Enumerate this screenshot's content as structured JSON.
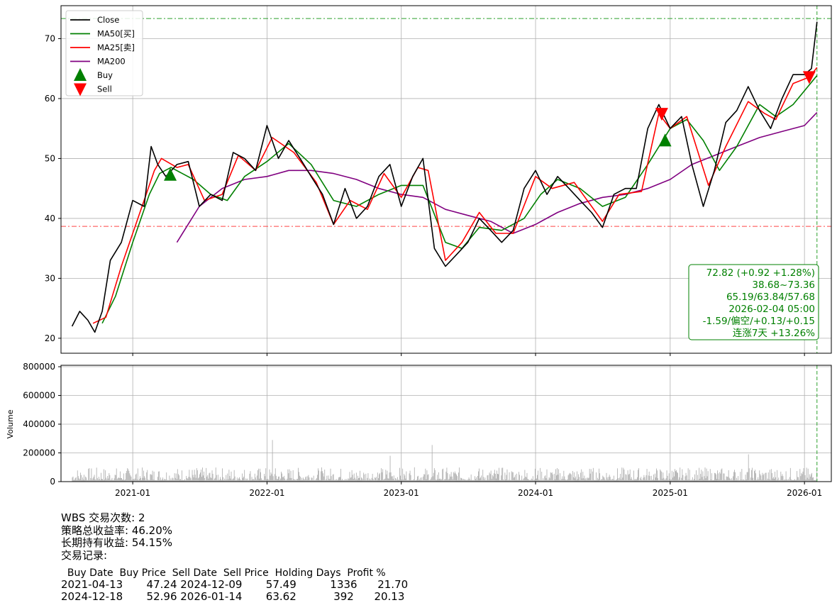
{
  "chart_data": [
    {
      "type": "line",
      "title": "",
      "xlabel": "",
      "ylabel": "",
      "x_tick_labels": [
        "2021-01",
        "2022-01",
        "2023-01",
        "2024-01",
        "2025-01",
        "2026-01"
      ],
      "y_ticks": [
        20,
        30,
        40,
        50,
        60,
        70
      ],
      "ylim": [
        17.5,
        75.5
      ],
      "grid": true,
      "legend_position": "top-left",
      "legend": [
        "Close",
        "MA50[买]",
        "MA25[卖]",
        "MA200",
        "Buy",
        "Sell"
      ],
      "colors": {
        "Close": "#000000",
        "MA50[买]": "#008000",
        "MA25[卖]": "#ff0000",
        "MA200": "#800080",
        "Buy": "#008000",
        "Sell": "#ff0000"
      },
      "hlines": [
        {
          "value": 73.36,
          "color": "#2ca02c",
          "style": "dash-dot"
        },
        {
          "value": 38.68,
          "color": "#ff4444",
          "style": "dash-dot"
        }
      ],
      "vline": {
        "date": "2026-02-04",
        "color": "#2ca02c"
      },
      "series": [
        {
          "name": "Close",
          "points": [
            [
              "2020-07-20",
              22.0
            ],
            [
              "2020-08-10",
              24.5
            ],
            [
              "2020-09-01",
              23.0
            ],
            [
              "2020-09-20",
              21.0
            ],
            [
              "2020-10-10",
              24.5
            ],
            [
              "2020-11-01",
              33.0
            ],
            [
              "2020-12-01",
              36.0
            ],
            [
              "2021-01-01",
              43.0
            ],
            [
              "2021-02-01",
              42.0
            ],
            [
              "2021-02-20",
              52.0
            ],
            [
              "2021-03-10",
              49.0
            ],
            [
              "2021-04-01",
              47.0
            ],
            [
              "2021-05-01",
              49.0
            ],
            [
              "2021-06-01",
              49.5
            ],
            [
              "2021-07-01",
              42.0
            ],
            [
              "2021-08-01",
              44.0
            ],
            [
              "2021-09-01",
              43.0
            ],
            [
              "2021-10-01",
              51.0
            ],
            [
              "2021-11-01",
              50.0
            ],
            [
              "2021-12-01",
              48.0
            ],
            [
              "2022-01-01",
              55.5
            ],
            [
              "2022-02-01",
              50.0
            ],
            [
              "2022-03-01",
              53.0
            ],
            [
              "2022-04-01",
              50.0
            ],
            [
              "2022-05-01",
              47.0
            ],
            [
              "2022-06-01",
              44.0
            ],
            [
              "2022-07-01",
              39.0
            ],
            [
              "2022-08-01",
              45.0
            ],
            [
              "2022-09-01",
              40.0
            ],
            [
              "2022-10-01",
              42.0
            ],
            [
              "2022-11-01",
              47.0
            ],
            [
              "2022-12-01",
              49.0
            ],
            [
              "2023-01-01",
              42.0
            ],
            [
              "2023-02-01",
              47.0
            ],
            [
              "2023-03-01",
              50.0
            ],
            [
              "2023-04-01",
              35.0
            ],
            [
              "2023-05-01",
              32.0
            ],
            [
              "2023-06-01",
              34.0
            ],
            [
              "2023-07-01",
              36.0
            ],
            [
              "2023-08-01",
              40.0
            ],
            [
              "2023-09-01",
              38.0
            ],
            [
              "2023-10-01",
              36.0
            ],
            [
              "2023-11-01",
              38.0
            ],
            [
              "2023-12-01",
              45.0
            ],
            [
              "2024-01-01",
              48.0
            ],
            [
              "2024-02-01",
              44.0
            ],
            [
              "2024-03-01",
              47.0
            ],
            [
              "2024-04-01",
              45.0
            ],
            [
              "2024-05-01",
              43.0
            ],
            [
              "2024-06-01",
              41.0
            ],
            [
              "2024-07-01",
              38.5
            ],
            [
              "2024-08-01",
              44.0
            ],
            [
              "2024-09-01",
              45.0
            ],
            [
              "2024-10-01",
              45.0
            ],
            [
              "2024-11-01",
              55.0
            ],
            [
              "2024-12-01",
              59.0
            ],
            [
              "2025-01-01",
              55.0
            ],
            [
              "2025-02-01",
              57.0
            ],
            [
              "2025-03-01",
              49.0
            ],
            [
              "2025-04-01",
              42.0
            ],
            [
              "2025-05-01",
              48.0
            ],
            [
              "2025-06-01",
              56.0
            ],
            [
              "2025-07-01",
              58.0
            ],
            [
              "2025-08-01",
              62.0
            ],
            [
              "2025-09-01",
              58.0
            ],
            [
              "2025-10-01",
              55.0
            ],
            [
              "2025-11-01",
              60.0
            ],
            [
              "2025-12-01",
              64.0
            ],
            [
              "2026-01-01",
              64.0
            ],
            [
              "2026-01-20",
              65.0
            ],
            [
              "2026-02-04",
              72.82
            ]
          ]
        },
        {
          "name": "MA50[买]",
          "points": [
            [
              "2020-10-10",
              22.5
            ],
            [
              "2020-11-15",
              27.0
            ],
            [
              "2021-01-01",
              36.0
            ],
            [
              "2021-02-15",
              44.0
            ],
            [
              "2021-03-15",
              47.5
            ],
            [
              "2021-04-15",
              48.5
            ],
            [
              "2021-06-15",
              46.5
            ],
            [
              "2021-08-01",
              44.0
            ],
            [
              "2021-09-15",
              43.0
            ],
            [
              "2021-11-01",
              47.0
            ],
            [
              "2022-01-01",
              49.5
            ],
            [
              "2022-03-01",
              52.5
            ],
            [
              "2022-05-01",
              49.0
            ],
            [
              "2022-07-01",
              43.0
            ],
            [
              "2022-09-01",
              42.0
            ],
            [
              "2022-11-01",
              44.0
            ],
            [
              "2023-01-01",
              45.5
            ],
            [
              "2023-03-01",
              45.5
            ],
            [
              "2023-05-01",
              36.0
            ],
            [
              "2023-06-15",
              35.0
            ],
            [
              "2023-08-01",
              38.5
            ],
            [
              "2023-10-01",
              38.0
            ],
            [
              "2023-12-01",
              40.0
            ],
            [
              "2024-01-15",
              44.0
            ],
            [
              "2024-03-01",
              46.5
            ],
            [
              "2024-05-01",
              45.0
            ],
            [
              "2024-07-01",
              42.0
            ],
            [
              "2024-09-01",
              43.5
            ],
            [
              "2024-11-01",
              49.0
            ],
            [
              "2025-01-01",
              55.0
            ],
            [
              "2025-02-15",
              56.5
            ],
            [
              "2025-04-01",
              53.0
            ],
            [
              "2025-05-15",
              48.0
            ],
            [
              "2025-07-01",
              52.0
            ],
            [
              "2025-09-01",
              59.0
            ],
            [
              "2025-10-15",
              57.0
            ],
            [
              "2025-12-01",
              59.0
            ],
            [
              "2026-02-04",
              63.84
            ]
          ]
        },
        {
          "name": "MA25[卖]",
          "points": [
            [
              "2020-09-15",
              22.5
            ],
            [
              "2020-10-20",
              23.5
            ],
            [
              "2020-12-01",
              32.0
            ],
            [
              "2021-01-15",
              40.0
            ],
            [
              "2021-03-01",
              48.0
            ],
            [
              "2021-03-20",
              50.0
            ],
            [
              "2021-05-01",
              48.5
            ],
            [
              "2021-06-01",
              49.0
            ],
            [
              "2021-07-15",
              43.0
            ],
            [
              "2021-09-01",
              44.0
            ],
            [
              "2021-10-15",
              50.5
            ],
            [
              "2021-12-01",
              48.0
            ],
            [
              "2022-01-15",
              53.5
            ],
            [
              "2022-03-15",
              51.0
            ],
            [
              "2022-05-15",
              46.0
            ],
            [
              "2022-07-01",
              39.0
            ],
            [
              "2022-08-15",
              43.0
            ],
            [
              "2022-10-01",
              41.5
            ],
            [
              "2022-11-15",
              47.5
            ],
            [
              "2023-01-01",
              43.5
            ],
            [
              "2023-02-15",
              48.5
            ],
            [
              "2023-03-15",
              48.0
            ],
            [
              "2023-05-01",
              33.0
            ],
            [
              "2023-06-15",
              36.0
            ],
            [
              "2023-08-01",
              41.0
            ],
            [
              "2023-09-15",
              37.5
            ],
            [
              "2023-11-01",
              37.5
            ],
            [
              "2024-01-01",
              47.0
            ],
            [
              "2024-02-15",
              45.0
            ],
            [
              "2024-04-15",
              46.0
            ],
            [
              "2024-07-01",
              39.5
            ],
            [
              "2024-08-15",
              44.0
            ],
            [
              "2024-10-15",
              44.5
            ],
            [
              "2024-12-01",
              57.5
            ],
            [
              "2025-01-01",
              55.0
            ],
            [
              "2025-02-15",
              57.0
            ],
            [
              "2025-04-15",
              45.5
            ],
            [
              "2025-06-01",
              52.0
            ],
            [
              "2025-08-01",
              59.5
            ],
            [
              "2025-09-15",
              57.5
            ],
            [
              "2025-10-15",
              56.5
            ],
            [
              "2025-12-01",
              62.5
            ],
            [
              "2026-01-15",
              63.6
            ],
            [
              "2026-02-04",
              65.19
            ]
          ]
        },
        {
          "name": "MA200",
          "points": [
            [
              "2021-05-01",
              36.0
            ],
            [
              "2021-07-01",
              42.0
            ],
            [
              "2021-09-01",
              45.0
            ],
            [
              "2021-11-01",
              46.5
            ],
            [
              "2022-01-01",
              47.0
            ],
            [
              "2022-03-01",
              48.0
            ],
            [
              "2022-05-01",
              48.0
            ],
            [
              "2022-07-01",
              47.5
            ],
            [
              "2022-09-01",
              46.5
            ],
            [
              "2022-11-01",
              45.0
            ],
            [
              "2023-01-01",
              44.0
            ],
            [
              "2023-03-01",
              43.5
            ],
            [
              "2023-05-01",
              41.5
            ],
            [
              "2023-07-01",
              40.5
            ],
            [
              "2023-09-01",
              39.5
            ],
            [
              "2023-11-01",
              37.5
            ],
            [
              "2024-01-01",
              39.0
            ],
            [
              "2024-03-01",
              41.0
            ],
            [
              "2024-05-01",
              42.5
            ],
            [
              "2024-07-01",
              43.5
            ],
            [
              "2024-09-01",
              44.0
            ],
            [
              "2024-11-01",
              45.0
            ],
            [
              "2025-01-01",
              46.5
            ],
            [
              "2025-03-01",
              49.0
            ],
            [
              "2025-05-01",
              50.5
            ],
            [
              "2025-07-01",
              52.0
            ],
            [
              "2025-09-01",
              53.5
            ],
            [
              "2025-11-01",
              54.5
            ],
            [
              "2026-01-01",
              55.5
            ],
            [
              "2026-02-04",
              57.68
            ]
          ]
        }
      ],
      "buy_markers": [
        [
          "2021-04-13",
          47.24
        ],
        [
          "2024-12-18",
          52.96
        ]
      ],
      "sell_markers": [
        [
          "2024-12-09",
          57.49
        ],
        [
          "2026-01-14",
          63.62
        ]
      ],
      "info_box": [
        "72.82 (+0.92 +1.28%)",
        "38.68~73.36",
        "65.19/63.84/57.68",
        "2026-02-04 05:00",
        "-1.59/偏空/+0.13/+0.15",
        "连涨7天 +13.26%"
      ]
    },
    {
      "type": "bar",
      "ylabel": "Volume",
      "y_tick_labels": [
        "0",
        "200000",
        "400000",
        "600000",
        "800000"
      ],
      "ylim": [
        0,
        810000
      ],
      "grid": true,
      "color": "#aaaaaa",
      "x_range": [
        "2020-07-20",
        "2026-02-04"
      ],
      "notable_values": [
        [
          "2022-01-15",
          290000
        ],
        [
          "2023-03-25",
          255000
        ],
        [
          "2022-12-01",
          180000
        ],
        [
          "2025-08-01",
          190000
        ],
        [
          "2021-08-15",
          165000
        ],
        [
          "2025-03-01",
          160000
        ]
      ],
      "typical_range": [
        10000,
        100000
      ]
    }
  ],
  "stats": {
    "trade_count": "WBS 交易次数: 2",
    "strategy_return": "策略总收益率: 46.20%",
    "hold_return": "长期持有收益: 54.15%",
    "records_title": "交易记录:"
  },
  "trades": {
    "header": "  Buy Date  Buy Price  Sell Date  Sell Price  Holding Days  Profit %",
    "rows": [
      "2021-04-13       47.24 2024-12-09       57.49          1336      21.70",
      "2024-12-18       52.96 2026-01-14       63.62           392      20.13"
    ]
  }
}
